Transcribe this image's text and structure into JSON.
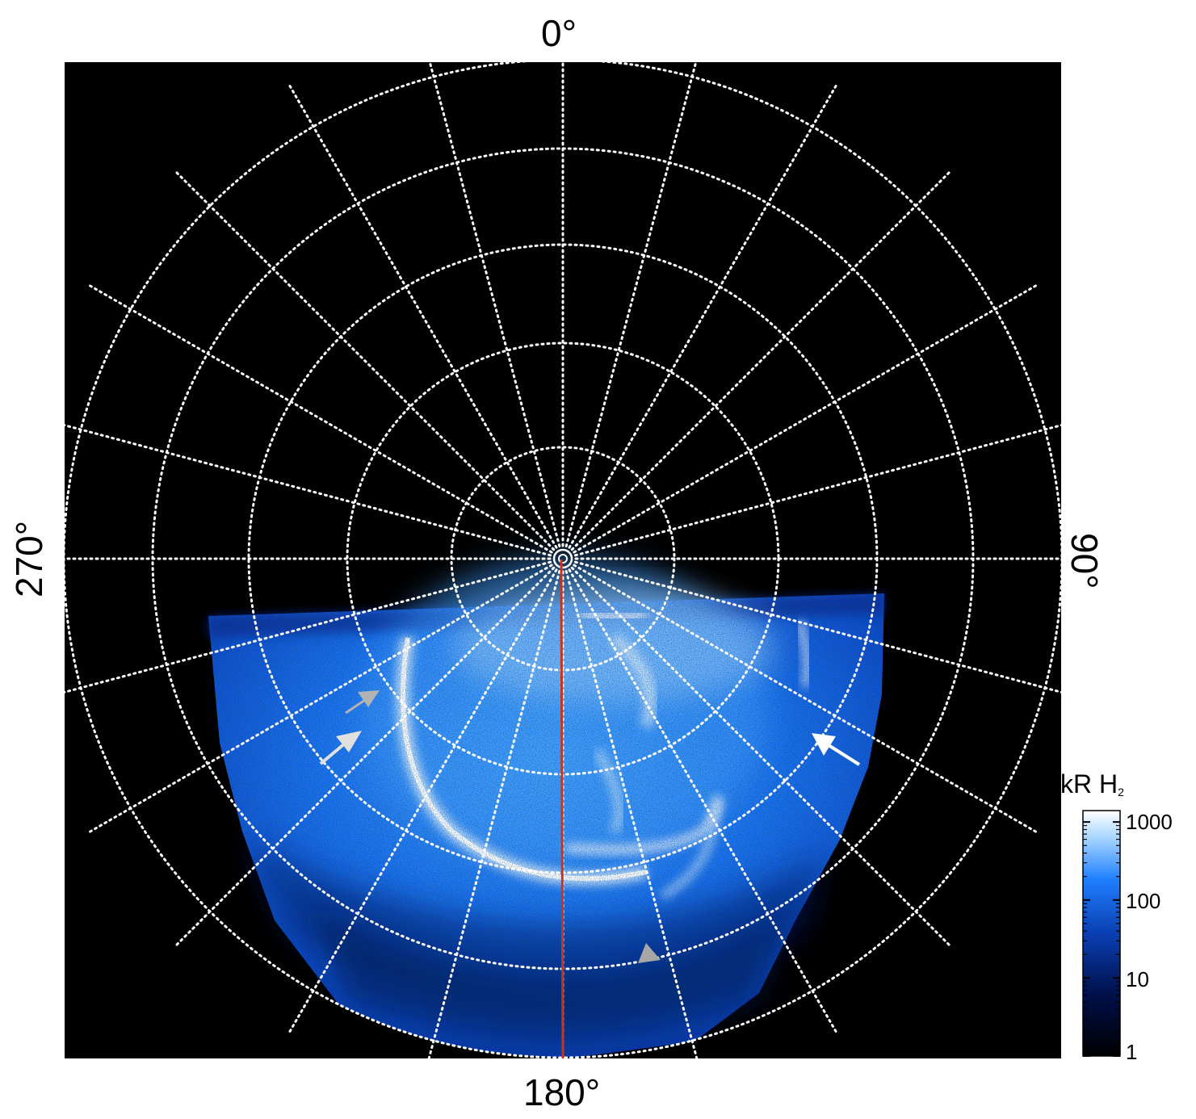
{
  "figure": {
    "axis_labels": {
      "top": "0°",
      "right": "90°",
      "bottom": "180°",
      "left": "270°"
    },
    "colorbar": {
      "title_main": "kR H",
      "title_sub": "2",
      "scale": "log",
      "range": [
        1,
        1400
      ],
      "tick_labels": [
        "1000",
        "100",
        "10",
        "1"
      ],
      "tick_values": [
        1000,
        100,
        10,
        1
      ],
      "colors": [
        "#000000",
        "#00104a",
        "#0a3fb3",
        "#1f7fff",
        "#9fd1ff",
        "#ffffff"
      ]
    },
    "colors": {
      "background": "#000000",
      "grid": "#ffffff",
      "meridian_line": "#c8331a",
      "arrow_gray": "#b3b3b3",
      "arrow_white": "#ffffff",
      "aurora_dark": "#0a2a8f",
      "aurora_mid": "#1d73f0",
      "aurora_bright": "#bfe3ff"
    },
    "annotations": {
      "arrows": [
        {
          "name": "gray-arrow-upper-left",
          "color": "gray"
        },
        {
          "name": "white-arrow-left",
          "color": "white"
        },
        {
          "name": "white-arrow-right",
          "color": "white"
        },
        {
          "name": "gray-arrowhead-bottom",
          "color": "gray"
        }
      ]
    }
  }
}
